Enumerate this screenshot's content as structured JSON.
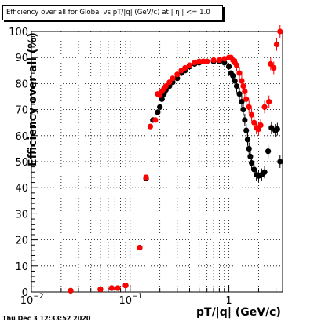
{
  "header": {
    "title": "Efficiency over all for Global vs pT/|q| (GeV/c) at | η | <= 1.0"
  },
  "footer": {
    "timestamp": "Thu Dec  3 12:33:52 2020"
  },
  "chart_data": {
    "type": "scatter",
    "title": "Efficiency over all for Global vs pT/|q| (GeV/c) at | η | <= 1.0",
    "xlabel": "pT/|q| (GeV/c)",
    "ylabel": "Efficiency over all (%)",
    "xscale": "log",
    "xlim": [
      0.01,
      3.5
    ],
    "ylim": [
      0,
      100
    ],
    "grid": true,
    "legend": "none",
    "x_ticks": [
      {
        "value": 0.01,
        "label": "10",
        "exp": "−2"
      },
      {
        "value": 0.1,
        "label": "10",
        "exp": "−1"
      },
      {
        "value": 1,
        "label": "1",
        "exp": ""
      }
    ],
    "y_ticks": [
      0,
      10,
      20,
      30,
      40,
      50,
      60,
      70,
      80,
      90,
      100
    ],
    "colors": {
      "black_series": "#000000",
      "red_series": "#ff0000"
    },
    "series": [
      {
        "color": "#000000",
        "points": [
          {
            "x": 0.025,
            "y": 0.5
          },
          {
            "x": 0.05,
            "y": 1
          },
          {
            "x": 0.065,
            "y": 1.5
          },
          {
            "x": 0.075,
            "y": 1.5
          },
          {
            "x": 0.09,
            "y": 2.5
          },
          {
            "x": 0.125,
            "y": 17
          },
          {
            "x": 0.145,
            "y": 43.5
          },
          {
            "x": 0.17,
            "y": 66
          },
          {
            "x": 0.19,
            "y": 69
          },
          {
            "x": 0.2,
            "y": 71
          },
          {
            "x": 0.21,
            "y": 74
          },
          {
            "x": 0.22,
            "y": 76
          },
          {
            "x": 0.23,
            "y": 77.5
          },
          {
            "x": 0.25,
            "y": 79
          },
          {
            "x": 0.27,
            "y": 80.5
          },
          {
            "x": 0.3,
            "y": 82
          },
          {
            "x": 0.33,
            "y": 84
          },
          {
            "x": 0.36,
            "y": 85
          },
          {
            "x": 0.4,
            "y": 86.5
          },
          {
            "x": 0.45,
            "y": 87.5
          },
          {
            "x": 0.5,
            "y": 88
          },
          {
            "x": 0.55,
            "y": 88.5
          },
          {
            "x": 0.6,
            "y": 88.5
          },
          {
            "x": 0.7,
            "y": 88.5
          },
          {
            "x": 0.8,
            "y": 88.5
          },
          {
            "x": 0.9,
            "y": 88
          },
          {
            "x": 1.0,
            "y": 86.5
          },
          {
            "x": 1.05,
            "y": 84
          },
          {
            "x": 1.1,
            "y": 83
          },
          {
            "x": 1.15,
            "y": 81
          },
          {
            "x": 1.2,
            "y": 79
          },
          {
            "x": 1.28,
            "y": 76
          },
          {
            "x": 1.35,
            "y": 73
          },
          {
            "x": 1.4,
            "y": 70
          },
          {
            "x": 1.45,
            "y": 66
          },
          {
            "x": 1.5,
            "y": 62
          },
          {
            "x": 1.55,
            "y": 58.5
          },
          {
            "x": 1.6,
            "y": 55
          },
          {
            "x": 1.65,
            "y": 52
          },
          {
            "x": 1.7,
            "y": 49.5
          },
          {
            "x": 1.8,
            "y": 47
          },
          {
            "x": 1.9,
            "y": 45
          },
          {
            "x": 2.0,
            "y": 44.5
          },
          {
            "x": 2.15,
            "y": 45
          },
          {
            "x": 2.3,
            "y": 46
          },
          {
            "x": 2.5,
            "y": 54
          },
          {
            "x": 2.7,
            "y": 63
          },
          {
            "x": 2.95,
            "y": 62
          },
          {
            "x": 3.1,
            "y": 62.5
          },
          {
            "x": 3.3,
            "y": 50
          }
        ]
      },
      {
        "color": "#ff0000",
        "points": [
          {
            "x": 0.025,
            "y": 0.5
          },
          {
            "x": 0.05,
            "y": 1
          },
          {
            "x": 0.065,
            "y": 1.5
          },
          {
            "x": 0.075,
            "y": 1.5
          },
          {
            "x": 0.09,
            "y": 2.5
          },
          {
            "x": 0.125,
            "y": 17
          },
          {
            "x": 0.145,
            "y": 44
          },
          {
            "x": 0.16,
            "y": 63.5
          },
          {
            "x": 0.18,
            "y": 66
          },
          {
            "x": 0.19,
            "y": 76
          },
          {
            "x": 0.2,
            "y": 75.5
          },
          {
            "x": 0.21,
            "y": 77
          },
          {
            "x": 0.22,
            "y": 78
          },
          {
            "x": 0.23,
            "y": 79
          },
          {
            "x": 0.25,
            "y": 80.5
          },
          {
            "x": 0.27,
            "y": 82
          },
          {
            "x": 0.3,
            "y": 83.5
          },
          {
            "x": 0.33,
            "y": 85
          },
          {
            "x": 0.36,
            "y": 86
          },
          {
            "x": 0.4,
            "y": 87
          },
          {
            "x": 0.45,
            "y": 88
          },
          {
            "x": 0.5,
            "y": 88.5
          },
          {
            "x": 0.55,
            "y": 88.5
          },
          {
            "x": 0.6,
            "y": 88.5
          },
          {
            "x": 0.7,
            "y": 89
          },
          {
            "x": 0.8,
            "y": 89
          },
          {
            "x": 0.9,
            "y": 89.5
          },
          {
            "x": 1.0,
            "y": 90
          },
          {
            "x": 1.05,
            "y": 90
          },
          {
            "x": 1.1,
            "y": 89
          },
          {
            "x": 1.15,
            "y": 88
          },
          {
            "x": 1.2,
            "y": 87
          },
          {
            "x": 1.28,
            "y": 84
          },
          {
            "x": 1.35,
            "y": 81
          },
          {
            "x": 1.4,
            "y": 79
          },
          {
            "x": 1.45,
            "y": 77
          },
          {
            "x": 1.5,
            "y": 74
          },
          {
            "x": 1.6,
            "y": 71
          },
          {
            "x": 1.7,
            "y": 68
          },
          {
            "x": 1.8,
            "y": 65
          },
          {
            "x": 1.9,
            "y": 63
          },
          {
            "x": 2.0,
            "y": 62.5
          },
          {
            "x": 2.1,
            "y": 64
          },
          {
            "x": 2.3,
            "y": 71
          },
          {
            "x": 2.55,
            "y": 73
          },
          {
            "x": 2.65,
            "y": 87.5
          },
          {
            "x": 2.85,
            "y": 86
          },
          {
            "x": 3.05,
            "y": 95
          },
          {
            "x": 3.3,
            "y": 100
          }
        ]
      }
    ]
  }
}
